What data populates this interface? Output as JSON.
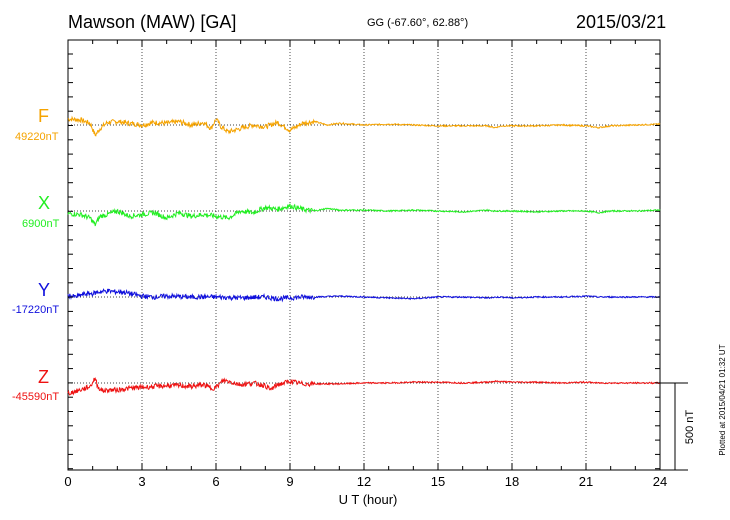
{
  "header": {
    "station": "Mawson (MAW)  [GA]",
    "coords": "GG (-67.60°,  62.88°)",
    "date": "2015/03/21"
  },
  "footer": {
    "plotted": "Plotted at 2015/04/21 01:32 UT"
  },
  "scale_bar": {
    "label": "500 nT"
  },
  "chart_data": {
    "type": "line",
    "title": "Mawson (MAW)  [GA]",
    "xlabel": "U T (hour)",
    "ylabel": "",
    "xlim": [
      0,
      24
    ],
    "xticks": [
      0,
      3,
      6,
      9,
      12,
      15,
      18,
      21,
      24
    ],
    "grid": true,
    "scale_nT": 500,
    "series": [
      {
        "name": "F",
        "baseline_label": "49220nT",
        "baseline_nT": 49220,
        "color": "#f5a300",
        "x": [
          0,
          0.5,
          0.9,
          1.1,
          1.3,
          1.6,
          2.0,
          2.5,
          3.0,
          3.5,
          4.0,
          4.5,
          5.0,
          5.5,
          5.8,
          6.0,
          6.2,
          6.5,
          7.0,
          7.5,
          8.0,
          8.5,
          9.0,
          9.5,
          10.0,
          10.5,
          11.0,
          12.0,
          13.0,
          14.0,
          15.0,
          16.0,
          17.0,
          17.3,
          17.6,
          18.0,
          19.0,
          20.0,
          21.0,
          21.5,
          22.0,
          23.0,
          24.0
        ],
        "values": [
          35,
          30,
          10,
          -60,
          -20,
          15,
          20,
          10,
          0,
          15,
          10,
          20,
          0,
          15,
          -20,
          35,
          -10,
          -40,
          -20,
          0,
          -10,
          15,
          -30,
          10,
          20,
          0,
          10,
          0,
          5,
          0,
          -5,
          -5,
          -5,
          -15,
          -5,
          -5,
          -5,
          0,
          -5,
          -15,
          -5,
          0,
          5
        ]
      },
      {
        "name": "X",
        "baseline_label": "6900nT",
        "baseline_nT": 6900,
        "color": "#22ee22",
        "x": [
          0,
          0.5,
          0.9,
          1.1,
          1.3,
          1.6,
          2.0,
          2.5,
          3.0,
          3.5,
          4.0,
          4.5,
          5.0,
          5.5,
          6.0,
          6.5,
          7.0,
          7.5,
          8.0,
          8.5,
          9.0,
          9.5,
          10.0,
          10.5,
          11.0,
          12.0,
          13.0,
          14.0,
          15.0,
          16.0,
          17.0,
          17.3,
          18.0,
          19.0,
          20.0,
          21.0,
          21.5,
          22.0,
          23.0,
          24.0
        ],
        "values": [
          -15,
          -20,
          -40,
          -80,
          -30,
          -20,
          0,
          -30,
          -20,
          -10,
          -40,
          -10,
          -30,
          -20,
          -30,
          -40,
          0,
          -10,
          20,
          10,
          30,
          10,
          0,
          15,
          5,
          5,
          0,
          5,
          0,
          -5,
          5,
          0,
          0,
          -5,
          0,
          0,
          -10,
          0,
          0,
          5
        ]
      },
      {
        "name": "Y",
        "baseline_label": "-17220nT",
        "baseline_nT": -17220,
        "color": "#1010dd",
        "x": [
          0,
          0.3,
          0.6,
          1.0,
          1.3,
          1.6,
          1.9,
          2.2,
          2.5,
          3.0,
          3.5,
          4.0,
          5.0,
          6.0,
          7.0,
          8.0,
          8.5,
          9.0,
          9.5,
          10.0,
          11.0,
          12.0,
          13.0,
          14.0,
          15.0,
          16.0,
          17.0,
          17.5,
          18.0,
          19.0,
          20.0,
          21.0,
          21.5,
          22.0,
          23.0,
          24.0
        ],
        "values": [
          10,
          0,
          15,
          20,
          30,
          35,
          30,
          30,
          20,
          5,
          0,
          5,
          0,
          0,
          -5,
          0,
          -10,
          -5,
          0,
          0,
          5,
          0,
          -5,
          -10,
          0,
          0,
          -5,
          0,
          -5,
          0,
          0,
          5,
          0,
          0,
          0,
          0
        ]
      },
      {
        "name": "Z",
        "baseline_label": "-45590nT",
        "baseline_nT": -45590,
        "color": "#ee1111",
        "x": [
          0,
          0.5,
          0.9,
          1.1,
          1.2,
          1.4,
          1.7,
          2.0,
          2.5,
          3.0,
          3.5,
          4.0,
          4.5,
          5.0,
          5.5,
          5.8,
          6.0,
          6.3,
          6.5,
          7.0,
          7.5,
          8.0,
          8.2,
          8.5,
          9.0,
          9.5,
          10.0,
          11.0,
          12.0,
          13.0,
          14.0,
          15.0,
          16.0,
          17.0,
          17.3,
          18.0,
          19.0,
          20.0,
          21.0,
          21.5,
          22.0,
          23.0,
          24.0
        ],
        "values": [
          -60,
          -40,
          -20,
          30,
          -20,
          -45,
          -40,
          -40,
          -30,
          -25,
          -20,
          -15,
          -15,
          -20,
          -10,
          -30,
          -25,
          15,
          10,
          -10,
          0,
          -15,
          -40,
          -10,
          10,
          -5,
          -5,
          -5,
          0,
          0,
          5,
          5,
          0,
          5,
          10,
          5,
          5,
          0,
          5,
          0,
          0,
          0,
          0
        ]
      }
    ]
  }
}
